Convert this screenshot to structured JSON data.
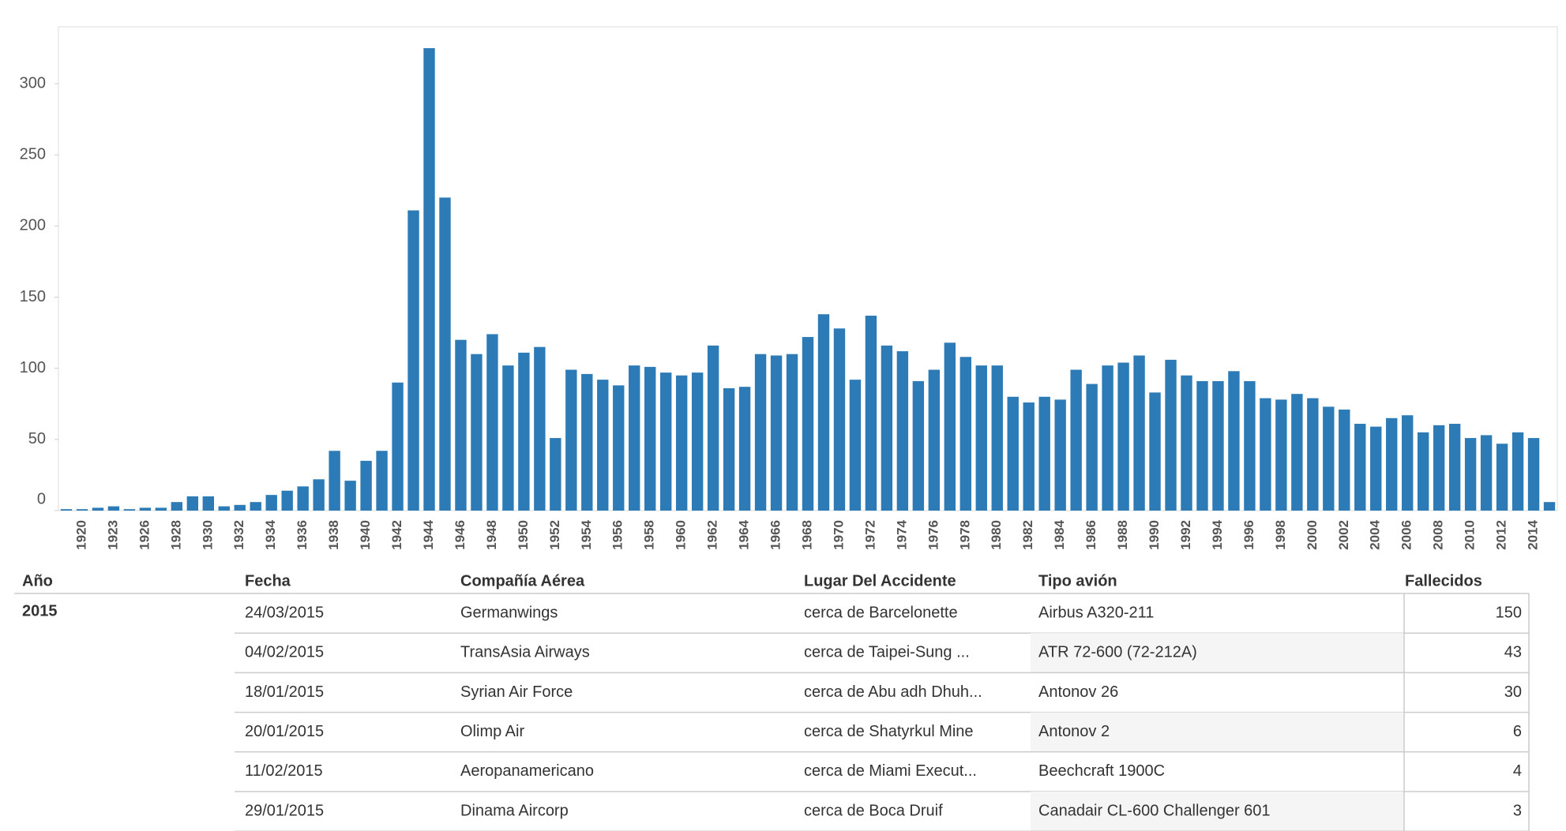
{
  "chart_data": {
    "type": "bar",
    "categories": [
      null,
      "1920",
      null,
      "1923",
      null,
      "1926",
      null,
      "1928",
      null,
      "1930",
      null,
      "1932",
      null,
      "1934",
      null,
      "1936",
      null,
      "1938",
      null,
      "1940",
      null,
      "1942",
      null,
      "1944",
      null,
      "1946",
      null,
      "1948",
      null,
      "1950",
      null,
      "1952",
      null,
      "1954",
      null,
      "1956",
      null,
      "1958",
      null,
      "1960",
      null,
      "1962",
      null,
      "1964",
      null,
      "1966",
      null,
      "1968",
      null,
      "1970",
      null,
      "1972",
      null,
      "1974",
      null,
      "1976",
      null,
      "1978",
      null,
      "1980",
      null,
      "1982",
      null,
      "1984",
      null,
      "1986",
      null,
      "1988",
      null,
      "1990",
      null,
      "1992",
      null,
      "1994",
      null,
      "1996",
      null,
      "1998",
      null,
      "2000",
      null,
      "2002",
      null,
      "2004",
      null,
      "2006",
      null,
      "2008",
      null,
      "2010",
      null,
      "2012",
      null,
      "2014",
      null
    ],
    "values": [
      1,
      1,
      2,
      3,
      1,
      2,
      2,
      6,
      10,
      10,
      3,
      4,
      6,
      11,
      14,
      17,
      22,
      42,
      21,
      35,
      42,
      90,
      211,
      325,
      220,
      120,
      110,
      124,
      102,
      111,
      115,
      51,
      99,
      96,
      92,
      88,
      102,
      101,
      97,
      95,
      97,
      116,
      86,
      87,
      110,
      109,
      110,
      122,
      138,
      128,
      92,
      137,
      116,
      112,
      91,
      99,
      118,
      108,
      102,
      102,
      80,
      76,
      80,
      78,
      99,
      89,
      102,
      104,
      109,
      83,
      106,
      95,
      91,
      91,
      98,
      91,
      79,
      78,
      82,
      79,
      73,
      71,
      61,
      59,
      65,
      67,
      55,
      60,
      61,
      51,
      53,
      47,
      55,
      51,
      6
    ],
    "color": "#2c7bb6",
    "ylim": [
      0,
      340
    ],
    "yticks": [
      0,
      50,
      100,
      150,
      200,
      250,
      300
    ],
    "grid": false
  },
  "table": {
    "columns": [
      "Año",
      "Fecha",
      "Compañía Aérea",
      "Lugar Del Accidente",
      "Tipo avión",
      "Fallecidos"
    ],
    "group": "2015",
    "rows": [
      [
        "24/03/2015",
        "Germanwings",
        "cerca de Barcelonette",
        "Airbus A320-211",
        150
      ],
      [
        "04/02/2015",
        "TransAsia Airways",
        "cerca de Taipei-Sung ...",
        "ATR 72-600 (72-212A)",
        43
      ],
      [
        "18/01/2015",
        "Syrian Air Force",
        "cerca de Abu adh Dhuh...",
        "Antonov 26",
        30
      ],
      [
        "20/01/2015",
        "Olimp Air",
        "cerca de Shatyrkul Mine",
        "Antonov 2",
        6
      ],
      [
        "11/02/2015",
        "Aeropanamericano",
        "cerca de Miami Execut...",
        "Beechcraft 1900C",
        4
      ],
      [
        "29/01/2015",
        "Dinama Aircorp",
        "cerca de Boca Druif",
        "Canadair CL-600 Challenger 601",
        3
      ]
    ]
  }
}
